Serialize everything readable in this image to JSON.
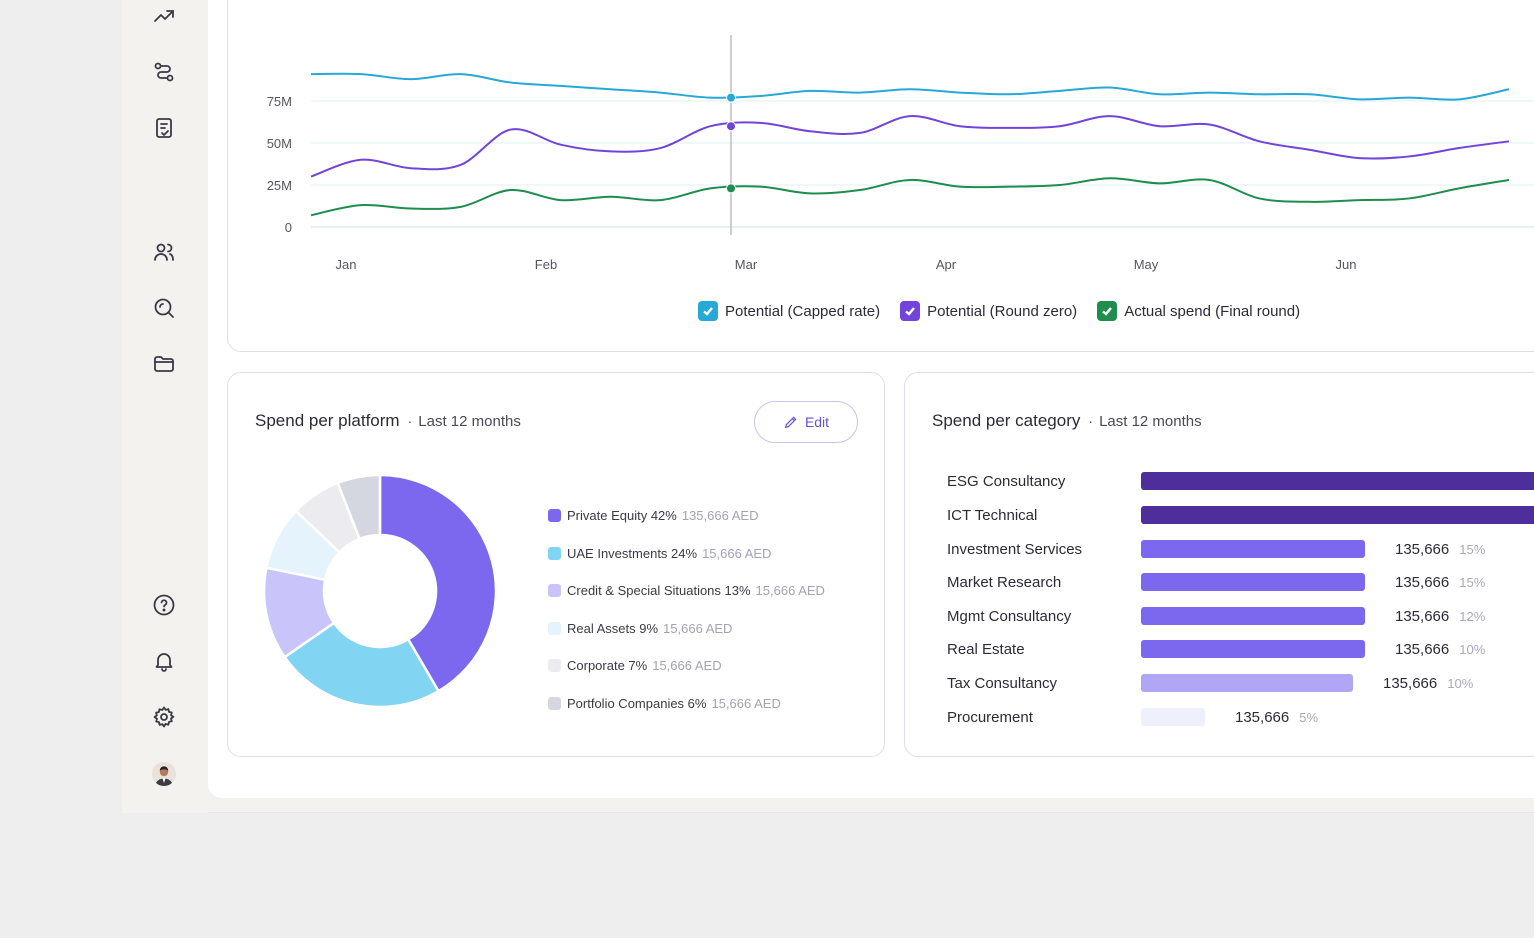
{
  "sidebar": {
    "icons": [
      "trending-up-icon",
      "route-icon",
      "document-check-icon",
      "users-icon",
      "search-icon",
      "folder-icon",
      "help-icon",
      "bell-icon",
      "settings-icon"
    ]
  },
  "line_chart": {
    "legend": [
      {
        "label": "Potential (Capped rate)",
        "color": "#26a9d6"
      },
      {
        "label": "Potential (Round zero)",
        "color": "#7244d9"
      },
      {
        "label": "Actual spend (Final round)",
        "color": "#1e8d4d"
      }
    ]
  },
  "chart_data": [
    {
      "type": "line",
      "x": [
        "Jan",
        "Feb",
        "Mar",
        "Apr",
        "May",
        "Jun"
      ],
      "y_ticks": [
        "0",
        "25M",
        "50M",
        "75M"
      ],
      "ylim": [
        0,
        75
      ],
      "grid": true,
      "legend_position": "bottom-center",
      "series": [
        {
          "name": "Potential (Capped rate)",
          "color": "#26a9d6",
          "points": [
            [
              0,
              91
            ],
            [
              0.25,
              91
            ],
            [
              0.5,
              88
            ],
            [
              0.75,
              91
            ],
            [
              1,
              86
            ],
            [
              1.25,
              84
            ],
            [
              1.5,
              82
            ],
            [
              1.75,
              80
            ],
            [
              2,
              77
            ],
            [
              2.25,
              78
            ],
            [
              2.5,
              81
            ],
            [
              2.75,
              80
            ],
            [
              3,
              82
            ],
            [
              3.25,
              80
            ],
            [
              3.5,
              79
            ],
            [
              3.75,
              81
            ],
            [
              4,
              83
            ],
            [
              4.25,
              79
            ],
            [
              4.5,
              80
            ],
            [
              4.75,
              79
            ],
            [
              5,
              79
            ],
            [
              5.25,
              76
            ],
            [
              5.5,
              77
            ],
            [
              5.75,
              76
            ],
            [
              6,
              82
            ]
          ]
        },
        {
          "name": "Potential (Round zero)",
          "color": "#7244d9",
          "points": [
            [
              0,
              30
            ],
            [
              0.25,
              40
            ],
            [
              0.5,
              35
            ],
            [
              0.75,
              37
            ],
            [
              1,
              58
            ],
            [
              1.25,
              49
            ],
            [
              1.5,
              45
            ],
            [
              1.75,
              47
            ],
            [
              2,
              60
            ],
            [
              2.25,
              62
            ],
            [
              2.5,
              57
            ],
            [
              2.75,
              56
            ],
            [
              3,
              66
            ],
            [
              3.25,
              60
            ],
            [
              3.5,
              59
            ],
            [
              3.75,
              60
            ],
            [
              4,
              66
            ],
            [
              4.25,
              60
            ],
            [
              4.5,
              61
            ],
            [
              4.75,
              51
            ],
            [
              5,
              46
            ],
            [
              5.25,
              41
            ],
            [
              5.5,
              42
            ],
            [
              5.75,
              47
            ],
            [
              6,
              51
            ]
          ]
        },
        {
          "name": "Actual spend (Final round)",
          "color": "#1e8d4d",
          "points": [
            [
              0,
              7
            ],
            [
              0.25,
              13
            ],
            [
              0.5,
              11
            ],
            [
              0.75,
              12
            ],
            [
              1,
              22
            ],
            [
              1.25,
              16
            ],
            [
              1.5,
              18
            ],
            [
              1.75,
              16
            ],
            [
              2,
              23
            ],
            [
              2.25,
              24
            ],
            [
              2.5,
              20
            ],
            [
              2.75,
              22
            ],
            [
              3,
              28
            ],
            [
              3.25,
              24
            ],
            [
              3.5,
              24
            ],
            [
              3.75,
              25
            ],
            [
              4,
              29
            ],
            [
              4.25,
              26
            ],
            [
              4.5,
              28
            ],
            [
              4.75,
              17
            ],
            [
              5,
              15
            ],
            [
              5.25,
              16
            ],
            [
              5.5,
              17
            ],
            [
              5.75,
              23
            ],
            [
              6,
              28
            ]
          ]
        }
      ],
      "hover_x": "Mar"
    },
    {
      "type": "pie",
      "categories": [
        "Private Equity",
        "UAE Investments",
        "Credit & Special Situations",
        "Real Assets",
        "Corporate",
        "Portfolio Companies"
      ],
      "values": [
        42,
        24,
        13,
        9,
        7,
        6
      ],
      "colors": [
        "#7b68ee",
        "#82d4f3",
        "#c9c5fa",
        "#e5f3fc",
        "#ececf0",
        "#d4d7df"
      ]
    },
    {
      "type": "bar",
      "orientation": "horizontal",
      "categories": [
        "ESG Consultancy",
        "ICT Technical",
        "Investment Services",
        "Market Research",
        "Mgmt Consultancy",
        "Real Estate",
        "Tax Consultancy",
        "Procurement"
      ],
      "values": [
        135666,
        135666,
        135666,
        135666,
        135666,
        135666,
        135666,
        135666
      ],
      "bar_fraction": [
        1.0,
        1.0,
        0.56,
        0.56,
        0.56,
        0.56,
        0.53,
        0.16
      ]
    }
  ],
  "platform": {
    "title": "Spend per platform",
    "subtitle": "Last 12 months",
    "edit_label": "Edit",
    "legend": [
      {
        "label": "Private Equity 42%",
        "amount": "135,666 AED",
        "color": "#7b68ee"
      },
      {
        "label": "UAE Investments 24%",
        "amount": "15,666 AED",
        "color": "#82d4f3"
      },
      {
        "label": "Credit & Special Situations 13%",
        "amount": "15,666 AED",
        "color": "#c9c5fa"
      },
      {
        "label": "Real Assets 9%",
        "amount": "15,666 AED",
        "color": "#e5f3fc"
      },
      {
        "label": "Corporate 7%",
        "amount": "15,666 AED",
        "color": "#ececf0"
      },
      {
        "label": "Portfolio Companies 6%",
        "amount": "15,666 AED",
        "color": "#d4d7df"
      }
    ]
  },
  "category": {
    "title": "Spend per category",
    "subtitle": "Last 12 months",
    "rows": [
      {
        "label": "ESG Consultancy",
        "value": "",
        "pct": "",
        "color": "#4e2e9a"
      },
      {
        "label": "ICT Technical",
        "value": "",
        "pct": "",
        "color": "#4e2e9a"
      },
      {
        "label": "Investment Services",
        "value": "135,666",
        "pct": "15%",
        "color": "#7b68ee"
      },
      {
        "label": "Market Research",
        "value": "135,666",
        "pct": "15%",
        "color": "#7b68ee"
      },
      {
        "label": "Mgmt Consultancy",
        "value": "135,666",
        "pct": "12%",
        "color": "#7b68ee"
      },
      {
        "label": "Real Estate",
        "value": "135,666",
        "pct": "10%",
        "color": "#7b68ee"
      },
      {
        "label": "Tax Consultancy",
        "value": "135,666",
        "pct": "10%",
        "color": "#b1a6f5"
      },
      {
        "label": "Procurement",
        "value": "135,666",
        "pct": "5%",
        "color": "#eef0fb"
      }
    ]
  }
}
